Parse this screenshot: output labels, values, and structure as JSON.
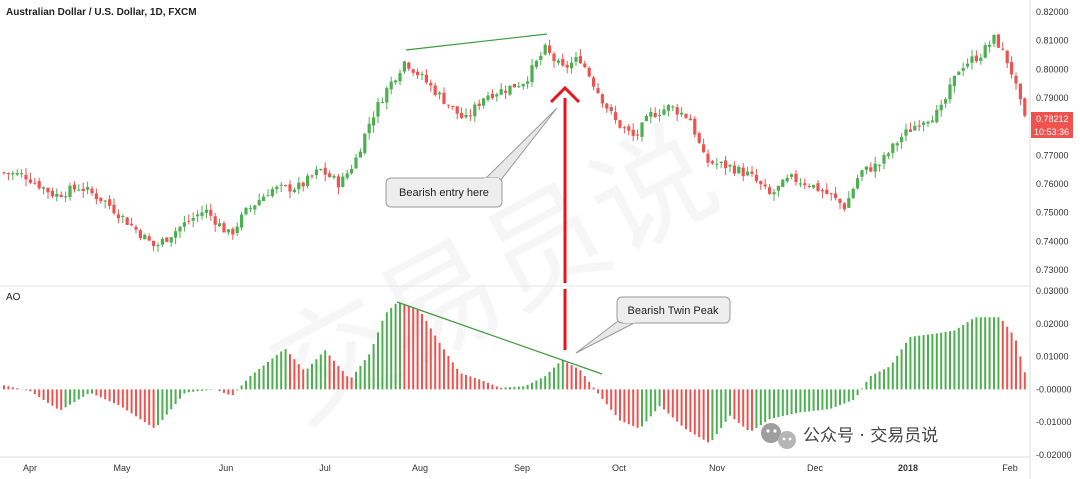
{
  "chart_data": [
    {
      "type": "candlestick",
      "title": "Australian Dollar / U.S. Dollar, 1D, FXCM",
      "ylim": [
        0.7255,
        0.8225
      ],
      "y_ticks": [
        "0.82000",
        "0.81000",
        "0.80000",
        "0.79000",
        "0.78000",
        "0.77000",
        "0.76000",
        "0.75000",
        "0.74000",
        "0.73000"
      ],
      "x_ticks": [
        "Apr",
        "May",
        "Jun",
        "Jul",
        "Aug",
        "Sep",
        "Oct",
        "Nov",
        "Dec",
        "2018",
        "Feb"
      ],
      "last_price": "0.78212",
      "countdown": "10:53:36",
      "annotation": "Bearish entry here",
      "colors": {
        "up": "#4caf50",
        "down": "#ef5350",
        "trendline": "#3d9a3d",
        "arrow": "#e8141a"
      }
    },
    {
      "type": "histogram",
      "title": "AO",
      "ylim": [
        -0.022,
        0.031
      ],
      "y_ticks": [
        "0.03000",
        "0.02000",
        "0.01000",
        "-0.00000",
        "-0.01000",
        "-0.02000"
      ],
      "annotation": "Bearish Twin Peak",
      "colors": {
        "rising": "#4caf50",
        "falling": "#ef5350"
      }
    }
  ],
  "watermark": "交易员说",
  "footer": {
    "wechat_icon": "wechat-icon",
    "text": "公众号 · 交易员说"
  }
}
